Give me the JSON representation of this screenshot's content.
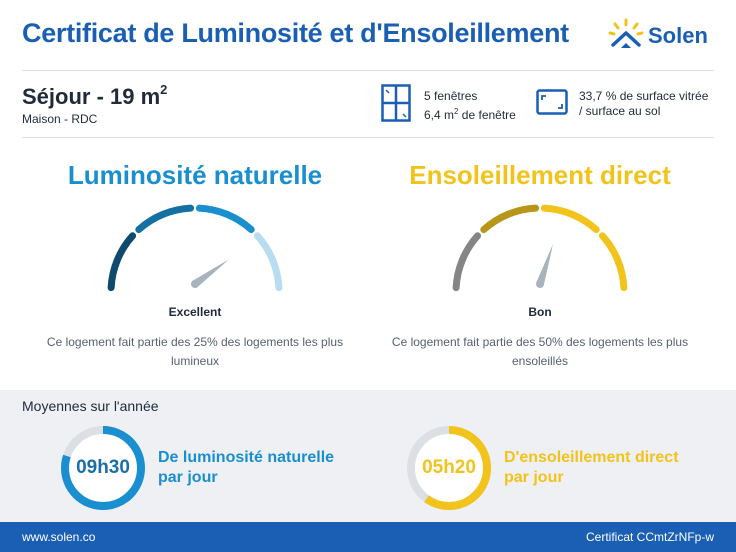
{
  "header": {
    "title": "Certificat de Luminosité et d'Ensoleillement",
    "brand": "Solen"
  },
  "room": {
    "name": "Séjour - 19 m",
    "name_sup": "2",
    "subtitle": "Maison - RDC"
  },
  "windows": {
    "count_label": "5 fenêtres",
    "area_prefix": "6,4 m",
    "area_sup": "2",
    "area_suffix": " de fenêtre"
  },
  "glazing": {
    "line1": "33,7 % de surface vitrée",
    "line2": "/ surface au sol"
  },
  "luminosity": {
    "title": "Luminosité naturelle",
    "rating": "Excellent",
    "level": 0.8,
    "description": "Ce logement fait partie des 25% des logements les plus lumineux",
    "colors": [
      "#0d4a6e",
      "#146fa3",
      "#1a8fd0",
      "#b8dcf1"
    ],
    "needle_color": "#a7b3bd"
  },
  "sunshine": {
    "title": "Ensoleillement direct",
    "rating": "Bon",
    "level": 0.6,
    "description": "Ce logement fait partie des 50% des logements les plus ensoleillés",
    "colors": [
      "#858585",
      "#b8961a",
      "#f2c31a",
      "#f2c31a"
    ],
    "needle_color": "#a7b3bd"
  },
  "averages": {
    "title": "Moyennes sur l'année",
    "luminosity": {
      "value": "09h30",
      "label_line1": "De luminosité naturelle",
      "label_line2": "par jour",
      "fraction": 0.8,
      "color": "#1a8fd0"
    },
    "sunshine": {
      "value": "05h20",
      "label_line1": "D'ensoleillement direct",
      "label_line2": "par jour",
      "fraction": 0.6,
      "color": "#f2c31a"
    }
  },
  "footer": {
    "website": "www.solen.co",
    "certificate": "Certificat CCmtZrNFp-w"
  }
}
